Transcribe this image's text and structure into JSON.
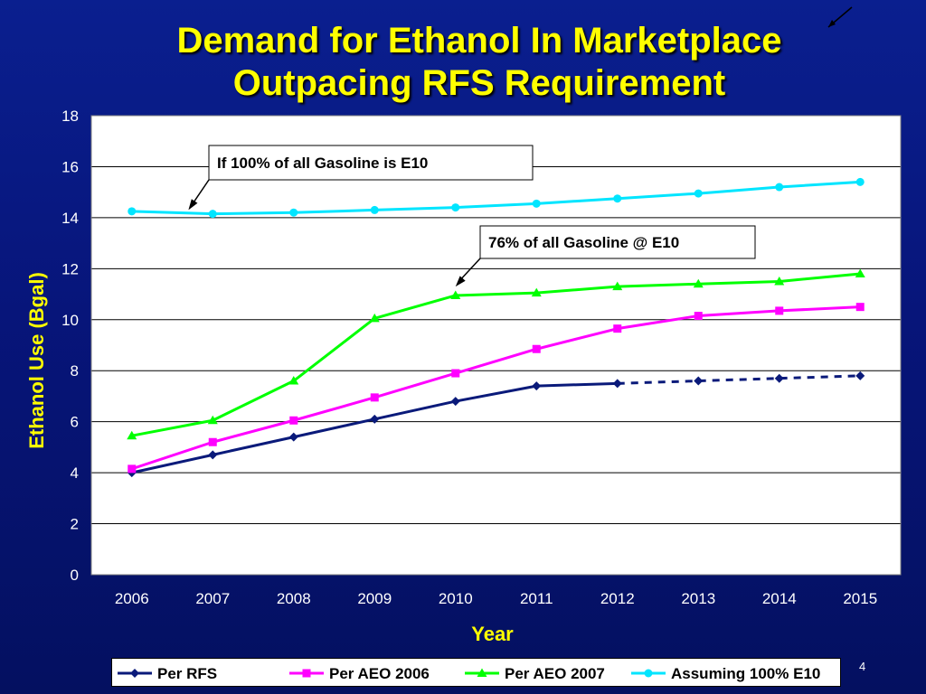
{
  "title_lines": [
    "Demand for Ethanol In Marketplace",
    "Outpacing RFS Requirement"
  ],
  "page_number": "4",
  "colors": {
    "background": "#0a1f8f",
    "title": "#ffff00",
    "axis_text": "#ffffff",
    "axis_title": "#ffff00",
    "grid": "#000000"
  },
  "chart_data": {
    "type": "line",
    "xlabel": "Year",
    "ylabel": "Ethanol Use (Bgal)",
    "x": [
      2006,
      2007,
      2008,
      2009,
      2010,
      2011,
      2012,
      2013,
      2014,
      2015
    ],
    "ylim": [
      0,
      18
    ],
    "yticks": [
      0,
      2,
      4,
      6,
      8,
      10,
      12,
      14,
      16,
      18
    ],
    "grid": true,
    "legend_position": "bottom",
    "series": [
      {
        "name": "Per RFS",
        "color": "#0a1a7a",
        "marker": "diamond",
        "values": [
          4.0,
          4.7,
          5.4,
          6.1,
          6.8,
          7.4,
          7.5,
          7.6,
          7.7,
          7.8
        ],
        "dashed_from_index": 6
      },
      {
        "name": "Per AEO 2006",
        "color": "#ff00ff",
        "marker": "square",
        "values": [
          4.15,
          5.2,
          6.05,
          6.95,
          7.9,
          8.85,
          9.65,
          10.15,
          10.35,
          10.5
        ]
      },
      {
        "name": "Per AEO 2007",
        "color": "#00ff00",
        "marker": "triangle",
        "values": [
          5.45,
          6.05,
          7.6,
          10.05,
          10.95,
          11.05,
          11.3,
          11.4,
          11.5,
          11.8
        ]
      },
      {
        "name": "Assuming 100% E10",
        "color": "#00e5ff",
        "marker": "circle",
        "values": [
          14.25,
          14.15,
          14.2,
          14.3,
          14.4,
          14.55,
          14.75,
          14.95,
          15.2,
          15.4
        ]
      }
    ],
    "annotations": [
      {
        "text": "If 100% of all Gasoline is E10",
        "target_x": 2006.7,
        "target_y": 14.3
      },
      {
        "text": "76% of all Gasoline @ E10",
        "target_x": 2010.0,
        "target_y": 11.3
      }
    ]
  }
}
